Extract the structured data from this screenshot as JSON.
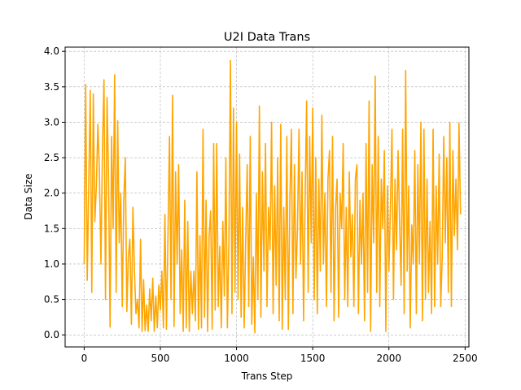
{
  "chart_data": {
    "type": "line",
    "title": "U2I Data Trans",
    "xlabel": "Trans Step",
    "ylabel": "Data Size",
    "xlim": [
      -125,
      2525
    ],
    "ylim": [
      -0.17,
      4.06
    ],
    "xticks": [
      0,
      500,
      1000,
      1500,
      2000,
      2500
    ],
    "yticks": [
      0.0,
      0.5,
      1.0,
      1.5,
      2.0,
      2.5,
      3.0,
      3.5,
      4.0
    ],
    "grid": true,
    "grid_style": "dashed",
    "line_color": "#ffa500",
    "series": [
      {
        "name": "",
        "x_step": 10,
        "values": [
          1.0,
          3.53,
          0.77,
          2.1,
          3.45,
          0.6,
          3.4,
          1.6,
          2.1,
          2.97,
          2.3,
          1.0,
          2.6,
          3.6,
          0.5,
          3.35,
          2.2,
          0.11,
          2.8,
          1.5,
          3.67,
          0.6,
          3.02,
          1.3,
          2.0,
          0.4,
          1.9,
          2.5,
          0.33,
          1.1,
          1.35,
          0.15,
          1.8,
          0.9,
          0.3,
          0.5,
          0.1,
          1.35,
          0.05,
          0.78,
          0.06,
          0.42,
          0.05,
          0.65,
          0.2,
          0.8,
          0.05,
          0.55,
          0.1,
          0.7,
          0.35,
          0.9,
          0.1,
          1.7,
          0.08,
          1.4,
          2.8,
          0.5,
          3.38,
          0.12,
          2.3,
          1.0,
          2.4,
          0.3,
          1.2,
          0.05,
          1.9,
          0.1,
          1.6,
          0.05,
          0.9,
          0.3,
          0.9,
          0.2,
          2.3,
          0.08,
          1.4,
          0.1,
          2.9,
          0.25,
          1.9,
          0.05,
          1.4,
          1.75,
          0.08,
          2.7,
          0.35,
          2.7,
          0.4,
          1.25,
          0.1,
          1.6,
          0.55,
          2.5,
          0.1,
          1.3,
          3.87,
          0.3,
          3.2,
          0.6,
          3.0,
          0.5,
          2.55,
          0.25,
          1.8,
          0.1,
          1.3,
          2.4,
          0.4,
          2.8,
          0.15,
          1.1,
          0.03,
          2.0,
          0.5,
          3.23,
          0.25,
          2.3,
          0.9,
          2.7,
          0.4,
          1.8,
          1.2,
          3.0,
          0.3,
          2.1,
          0.7,
          2.5,
          0.2,
          2.97,
          0.08,
          1.8,
          0.5,
          2.8,
          0.08,
          1.9,
          2.9,
          0.3,
          2.4,
          0.8,
          1.5,
          2.9,
          1.0,
          2.3,
          0.2,
          1.9,
          3.3,
          0.6,
          2.8,
          1.3,
          3.2,
          0.5,
          2.5,
          0.3,
          2.2,
          0.9,
          3.1,
          1.0,
          2.0,
          0.4,
          2.2,
          2.6,
          0.6,
          2.8,
          0.2,
          1.8,
          2.2,
          0.25,
          2.0,
          1.5,
          2.7,
          0.5,
          1.8,
          0.4,
          2.3,
          1.1,
          1.7,
          0.4,
          2.2,
          2.4,
          0.3,
          1.9,
          1.0,
          2.0,
          0.2,
          2.7,
          0.6,
          3.3,
          0.05,
          2.4,
          1.3,
          3.65,
          0.6,
          2.8,
          0.4,
          2.2,
          1.5,
          2.6,
          0.05,
          2.1,
          0.9,
          1.8,
          2.9,
          0.5,
          2.2,
          1.2,
          2.6,
          1.6,
          0.7,
          2.9,
          0.3,
          3.73,
          0.9,
          2.1,
          0.1,
          1.55,
          1.0,
          2.6,
          0.3,
          2.4,
          1.0,
          3.0,
          0.2,
          2.9,
          0.5,
          2.2,
          0.6,
          1.6,
          0.3,
          2.9,
          0.4,
          2.1,
          1.0,
          2.55,
          0.4,
          1.1,
          2.8,
          1.3,
          2.5,
          0.6,
          3.0,
          0.4,
          2.6,
          1.4,
          2.2,
          1.2,
          2.99,
          1.7
        ]
      }
    ]
  }
}
